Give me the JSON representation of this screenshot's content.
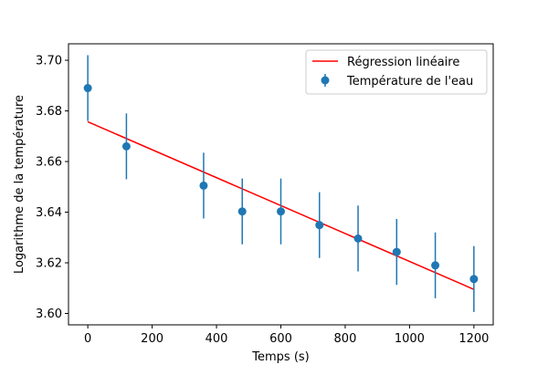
{
  "chart_data": {
    "type": "scatter",
    "title": "",
    "xlabel": "Temps (s)",
    "ylabel": "Logarithme de la température",
    "xlim": [
      -60,
      1260
    ],
    "ylim": [
      3.5955,
      3.7065
    ],
    "xticks": [
      0,
      200,
      400,
      600,
      800,
      1000,
      1200
    ],
    "yticks": [
      3.6,
      3.62,
      3.64,
      3.66,
      3.68,
      3.7
    ],
    "ytick_labels": [
      "3.60",
      "3.62",
      "3.64",
      "3.66",
      "3.68",
      "3.70"
    ],
    "grid": false,
    "legend_position": "top-right",
    "series": [
      {
        "name": "Température de l'eau",
        "kind": "errorbar",
        "color": "#1f77b4",
        "x": [
          0,
          120,
          360,
          480,
          600,
          720,
          840,
          960,
          1080,
          1200
        ],
        "y": [
          3.689,
          3.666,
          3.6505,
          3.6403,
          3.6403,
          3.6349,
          3.6296,
          3.6243,
          3.619,
          3.6136
        ],
        "yerr": [
          0.013,
          0.013,
          0.013,
          0.013,
          0.013,
          0.013,
          0.013,
          0.013,
          0.013,
          0.013
        ]
      },
      {
        "name": "Régression linéaire",
        "kind": "line",
        "color": "#ff0000",
        "x": [
          0,
          1200
        ],
        "y": [
          3.6757,
          3.6095
        ]
      }
    ]
  }
}
